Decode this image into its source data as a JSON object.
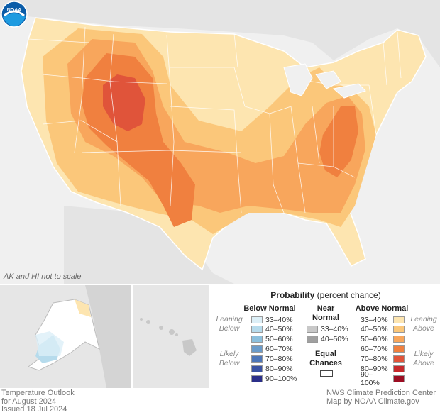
{
  "map": {
    "note": "AK and HI not to scale",
    "logo_text": "NOAA"
  },
  "legend": {
    "title_bold": "Probability",
    "title_rest": " (percent chance)",
    "below_header": "Below Normal",
    "near_header_1": "Near",
    "near_header_2": "Normal",
    "above_header": "Above Normal",
    "leaning_below_1": "Leaning",
    "leaning_below_2": "Below",
    "likely_below_1": "Likely",
    "likely_below_2": "Below",
    "leaning_above_1": "Leaning",
    "leaning_above_2": "Above",
    "likely_above_1": "Likely",
    "likely_above_2": "Above",
    "equal_1": "Equal",
    "equal_2": "Chances",
    "below": [
      {
        "label": "33–40%",
        "color": "#dceff7"
      },
      {
        "label": "40–50%",
        "color": "#b6dbec"
      },
      {
        "label": "50–60%",
        "color": "#8bbfdc"
      },
      {
        "label": "60–70%",
        "color": "#6a9bc9"
      },
      {
        "label": "70–80%",
        "color": "#4d76b8"
      },
      {
        "label": "80–90%",
        "color": "#3b53a3"
      },
      {
        "label": "90–100%",
        "color": "#2b2f8a"
      }
    ],
    "near": [
      {
        "label": "33–40%",
        "color": "#c8c8c8"
      },
      {
        "label": "40–50%",
        "color": "#a0a0a0"
      }
    ],
    "above": [
      {
        "label": "33–40%",
        "color": "#fde5b0"
      },
      {
        "label": "40–50%",
        "color": "#fbc77a"
      },
      {
        "label": "50–60%",
        "color": "#f8a65c"
      },
      {
        "label": "60–70%",
        "color": "#f0803f"
      },
      {
        "label": "70–80%",
        "color": "#e0543a"
      },
      {
        "label": "80–90%",
        "color": "#c62a2c"
      },
      {
        "label": "90–100%",
        "color": "#9c0d22"
      }
    ]
  },
  "footer": {
    "line1": "Temperature Outlook",
    "line2": "for August 2024",
    "line3": "Issued 18 Jul 2024",
    "right1": "NWS Climate Prediction Center",
    "right2": "Map by NOAA Climate.gov"
  }
}
